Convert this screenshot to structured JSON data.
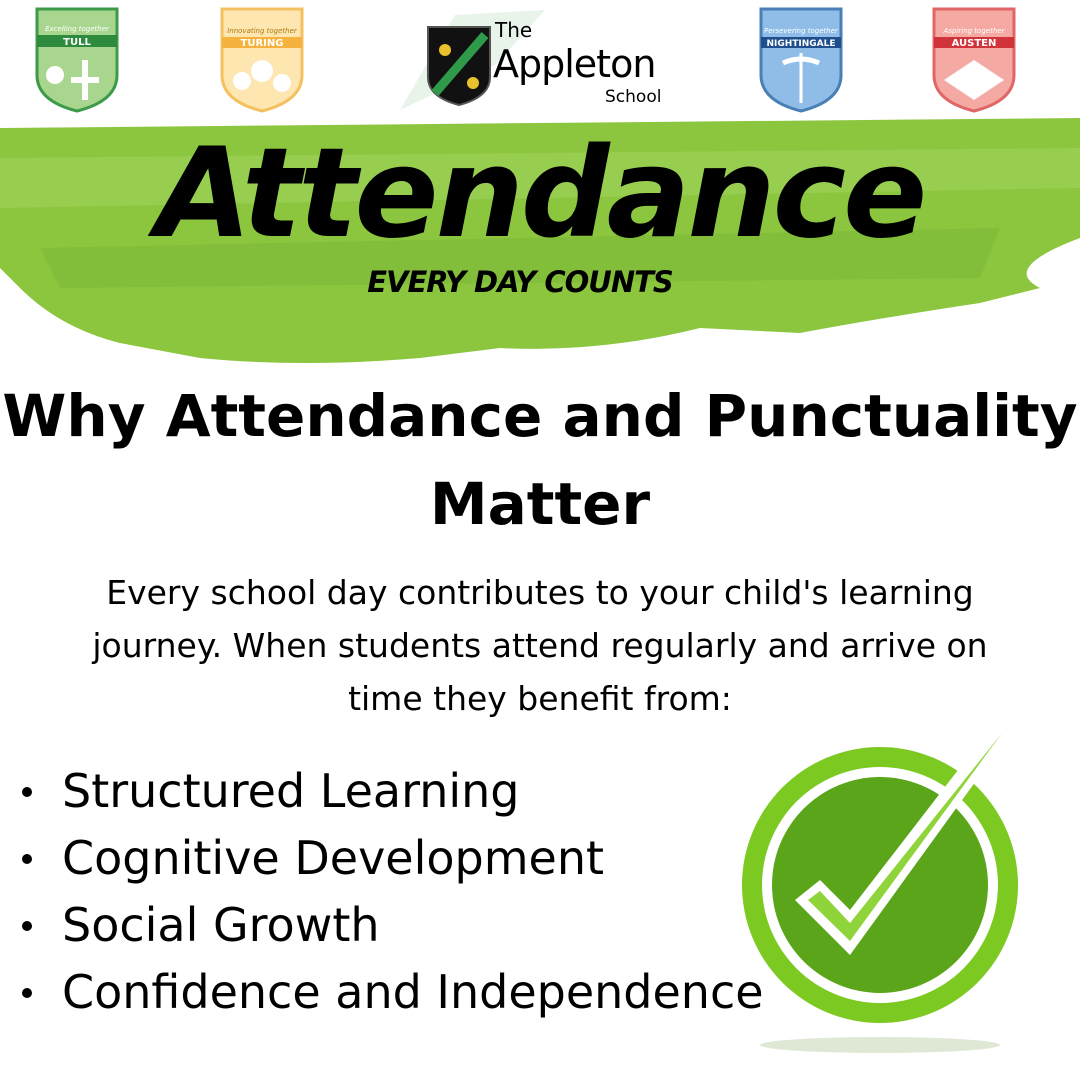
{
  "header": {
    "houses": [
      {
        "name": "TULL",
        "motto": "Excelling together",
        "color": "#4caf50"
      },
      {
        "name": "TURING",
        "motto": "Innovating together",
        "color": "#f5b942"
      },
      {
        "name": "NIGHTINGALE",
        "motto": "Persevering together",
        "color": "#6fa8dc"
      },
      {
        "name": "AUSTEN",
        "motto": "Aspiring together",
        "color": "#e06666"
      }
    ],
    "logo": {
      "the": "The",
      "name": "Appleton",
      "school": "School"
    }
  },
  "banner": {
    "title": "Attendance",
    "tagline": "EVERY DAY COUNTS",
    "brush_color": "#8bc34a"
  },
  "main": {
    "heading_line1": "Why Attendance and Punctuality",
    "heading_line2": "Matter",
    "body_line1": "Every school day contributes to your child's learning",
    "body_line2": "journey. When students attend regularly and arrive on",
    "body_line3": "time they benefit from:",
    "benefits": [
      "Structured Learning",
      "Cognitive Development",
      "Social Growth",
      "Confidence and Independence"
    ]
  },
  "checkmark_color": "#7cc922"
}
